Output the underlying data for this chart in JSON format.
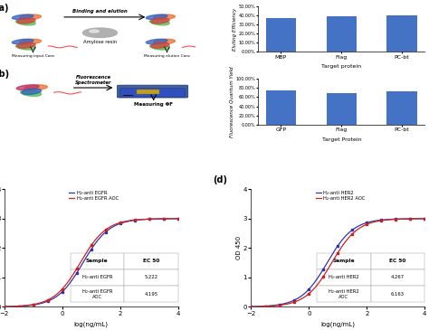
{
  "bar1_categories": [
    "MBP",
    "Flag",
    "PC-bt"
  ],
  "bar1_values": [
    37.0,
    39.0,
    40.0
  ],
  "bar1_ylabel": "Eluting Efficiency",
  "bar1_xlabel": "Target protein",
  "bar1_ylim": [
    0,
    50
  ],
  "bar1_yticks": [
    0,
    10,
    20,
    30,
    40,
    50
  ],
  "bar1_yticklabels": [
    "0.00%",
    "10.00%",
    "20.00%",
    "30.00%",
    "40.00%",
    "50.00%"
  ],
  "bar2_categories": [
    "GFP",
    "Flag",
    "PC-bt"
  ],
  "bar2_values": [
    75.0,
    68.0,
    73.0
  ],
  "bar2_ylabel": "Fluorescence Quantum Yield",
  "bar2_xlabel": "Target Protein",
  "bar2_ylim": [
    0,
    100
  ],
  "bar2_yticks": [
    0,
    20,
    40,
    60,
    80,
    100
  ],
  "bar2_yticklabels": [
    "0.00%",
    "20.00%",
    "40.00%",
    "60.00%",
    "80.00%",
    "100.00%"
  ],
  "bar_color": "#4472C4",
  "curve_c_line1_color": "#3333AA",
  "curve_c_line2_color": "#CC2222",
  "curve_d_line1_color": "#3333AA",
  "curve_d_line2_color": "#CC2222",
  "curve_c_legend1": "H₂-anti EGFR",
  "curve_c_legend2": "H₂-anti EGFR AOC",
  "curve_d_legend1": "H₂-anti HER2",
  "curve_d_legend2": "H₂-anti HER2 AOC",
  "curve_c_ec50_1": "5.222",
  "curve_c_ec50_2": "4.195",
  "curve_d_ec50_1": "4.267",
  "curve_d_ec50_2": "6.163",
  "curve_c_sample1": "H₂-anti EGFR",
  "curve_c_sample2": "H₂-anti EGFR\nAOC",
  "curve_d_sample1": "H₂-anti HER2",
  "curve_d_sample2": "H₂-anti HER2\nAOC",
  "curve_xlabel": "log(ng/mL)",
  "curve_ylabel": "OD 450",
  "curve_yticks": [
    0,
    1,
    2,
    3,
    4
  ],
  "curve_xticks": [
    -2,
    0,
    2,
    4
  ],
  "bg_color": "#f0f0f0"
}
